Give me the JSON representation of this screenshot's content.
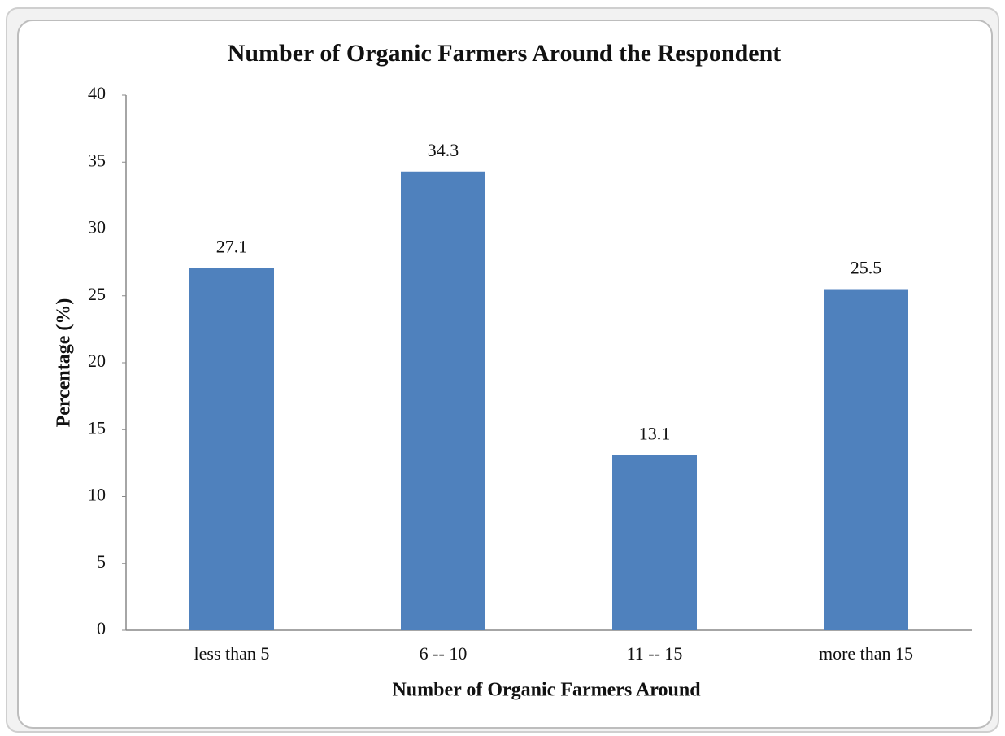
{
  "chart_data": {
    "type": "bar",
    "title": "Number of Organic Farmers Around the Respondent",
    "x_label": "Number of Organic Farmers Around",
    "y_label": "Percentage (%)",
    "categories": [
      "less than 5",
      "6 -- 10",
      "11 -- 15",
      "more than 15"
    ],
    "values": [
      27.1,
      34.3,
      13.1,
      25.5
    ],
    "color": "#4f81bd",
    "ylim": [
      0,
      40
    ],
    "yticks": [
      0,
      5,
      10,
      15,
      20,
      25,
      30,
      35,
      40
    ],
    "grid": false
  }
}
